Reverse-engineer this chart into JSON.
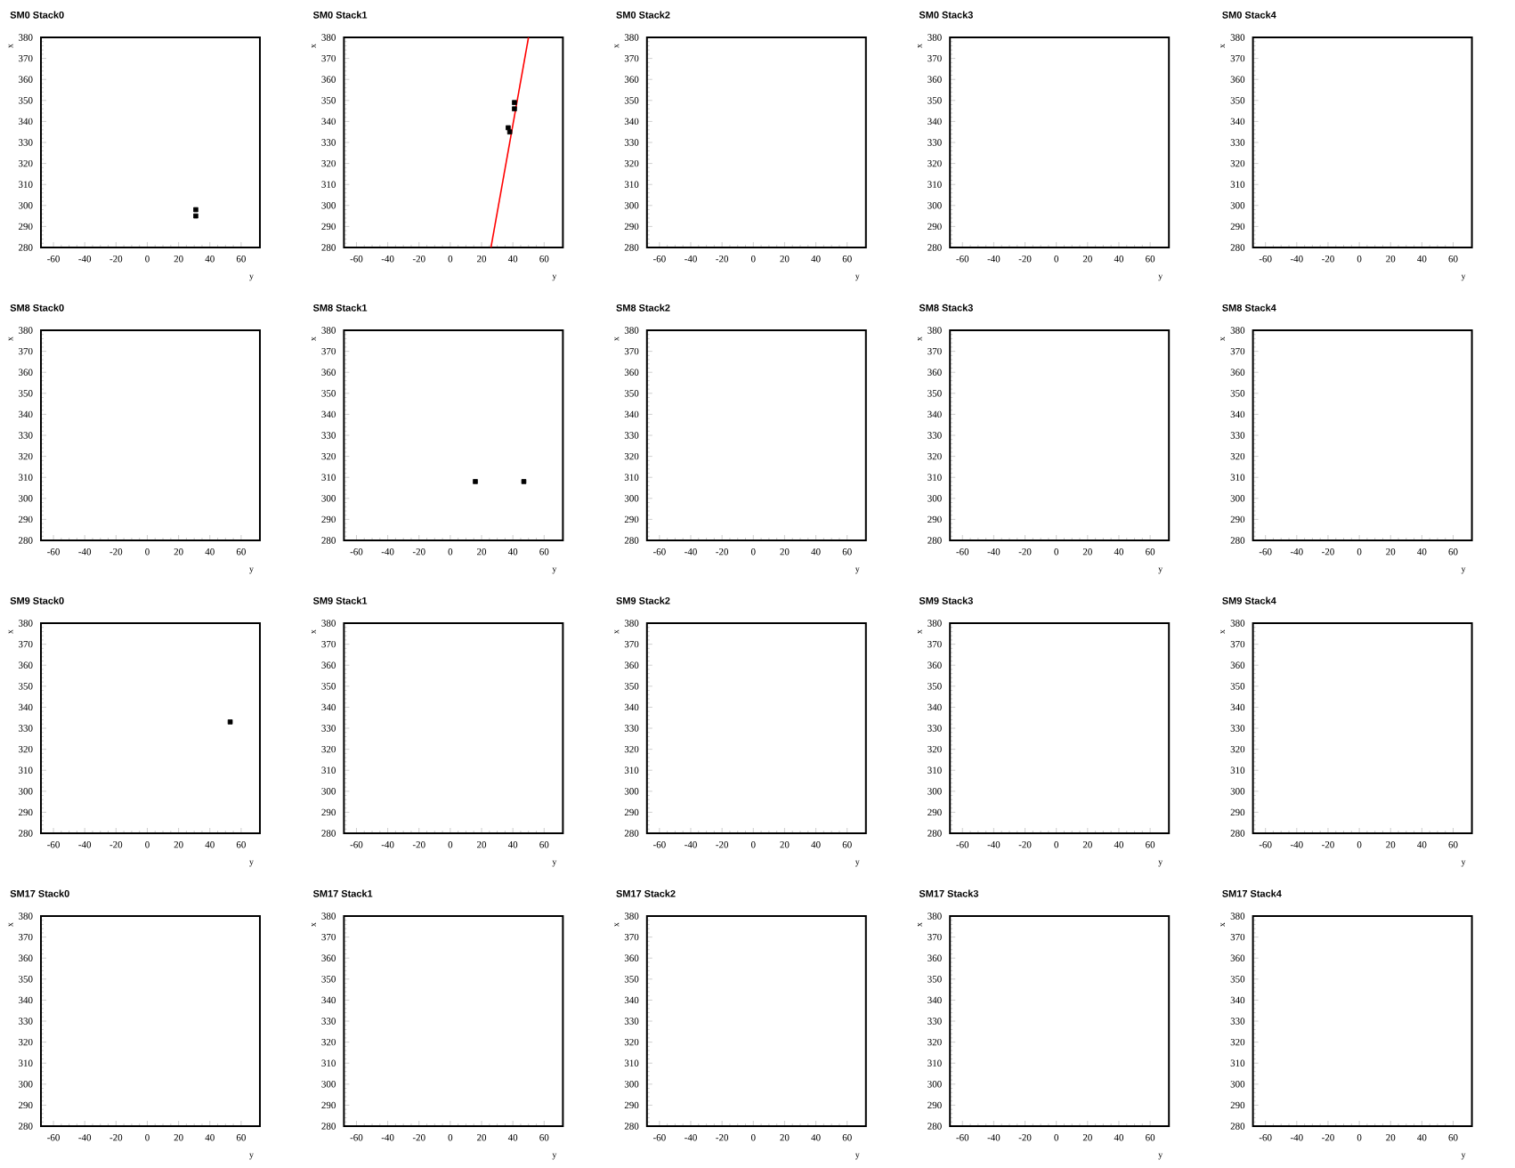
{
  "chart_data": [
    {
      "type": "scatter",
      "title": "SM0 Stack0",
      "xlabel": "y",
      "ylabel": "x",
      "xlim": [
        -68,
        72
      ],
      "ylim": [
        280,
        380
      ],
      "xticks": [
        -60,
        -40,
        -20,
        0,
        20,
        40,
        60
      ],
      "yticks": [
        280,
        290,
        300,
        310,
        320,
        330,
        340,
        350,
        360,
        370,
        380
      ],
      "series": [
        {
          "color": "#000000",
          "marker": "square",
          "x": [
            31,
            31
          ],
          "values": [
            298,
            295
          ]
        }
      ]
    },
    {
      "type": "scatter",
      "title": "SM0 Stack1",
      "xlabel": "y",
      "ylabel": "x",
      "xlim": [
        -68,
        72
      ],
      "ylim": [
        280,
        380
      ],
      "xticks": [
        -60,
        -40,
        -20,
        0,
        20,
        40,
        60
      ],
      "yticks": [
        280,
        290,
        300,
        310,
        320,
        330,
        340,
        350,
        360,
        370,
        380
      ],
      "series": [
        {
          "color": "#000000",
          "marker": "square",
          "x": [
            37,
            38,
            41,
            41
          ],
          "values": [
            337,
            335,
            349,
            346
          ]
        },
        {
          "type": "line",
          "color": "#ff0000",
          "x": [
            26,
            50
          ],
          "values": [
            280,
            380
          ]
        }
      ]
    },
    {
      "type": "scatter",
      "title": "SM0 Stack2",
      "xlabel": "y",
      "ylabel": "x",
      "xlim": [
        -68,
        72
      ],
      "ylim": [
        280,
        380
      ],
      "xticks": [
        -60,
        -40,
        -20,
        0,
        20,
        40,
        60
      ],
      "yticks": [
        280,
        290,
        300,
        310,
        320,
        330,
        340,
        350,
        360,
        370,
        380
      ]
    },
    {
      "type": "scatter",
      "title": "SM0 Stack3",
      "xlabel": "y",
      "ylabel": "x",
      "xlim": [
        -68,
        72
      ],
      "ylim": [
        280,
        380
      ],
      "xticks": [
        -60,
        -40,
        -20,
        0,
        20,
        40,
        60
      ],
      "yticks": [
        280,
        290,
        300,
        310,
        320,
        330,
        340,
        350,
        360,
        370,
        380
      ]
    },
    {
      "type": "scatter",
      "title": "SM0 Stack4",
      "xlabel": "y",
      "ylabel": "x",
      "xlim": [
        -68,
        72
      ],
      "ylim": [
        280,
        380
      ],
      "xticks": [
        -60,
        -40,
        -20,
        0,
        20,
        40,
        60
      ],
      "yticks": [
        280,
        290,
        300,
        310,
        320,
        330,
        340,
        350,
        360,
        370,
        380
      ]
    },
    {
      "type": "scatter",
      "title": "SM8 Stack0",
      "xlabel": "y",
      "ylabel": "x",
      "xlim": [
        -68,
        72
      ],
      "ylim": [
        280,
        380
      ],
      "xticks": [
        -60,
        -40,
        -20,
        0,
        20,
        40,
        60
      ],
      "yticks": [
        280,
        290,
        300,
        310,
        320,
        330,
        340,
        350,
        360,
        370,
        380
      ]
    },
    {
      "type": "scatter",
      "title": "SM8 Stack1",
      "xlabel": "y",
      "ylabel": "x",
      "xlim": [
        -68,
        72
      ],
      "ylim": [
        280,
        380
      ],
      "xticks": [
        -60,
        -40,
        -20,
        0,
        20,
        40,
        60
      ],
      "yticks": [
        280,
        290,
        300,
        310,
        320,
        330,
        340,
        350,
        360,
        370,
        380
      ],
      "series": [
        {
          "color": "#000000",
          "marker": "square",
          "x": [
            16,
            47
          ],
          "values": [
            308,
            308
          ]
        }
      ]
    },
    {
      "type": "scatter",
      "title": "SM8 Stack2",
      "xlabel": "y",
      "ylabel": "x",
      "xlim": [
        -68,
        72
      ],
      "ylim": [
        280,
        380
      ],
      "xticks": [
        -60,
        -40,
        -20,
        0,
        20,
        40,
        60
      ],
      "yticks": [
        280,
        290,
        300,
        310,
        320,
        330,
        340,
        350,
        360,
        370,
        380
      ]
    },
    {
      "type": "scatter",
      "title": "SM8 Stack3",
      "xlabel": "y",
      "ylabel": "x",
      "xlim": [
        -68,
        72
      ],
      "ylim": [
        280,
        380
      ],
      "xticks": [
        -60,
        -40,
        -20,
        0,
        20,
        40,
        60
      ],
      "yticks": [
        280,
        290,
        300,
        310,
        320,
        330,
        340,
        350,
        360,
        370,
        380
      ]
    },
    {
      "type": "scatter",
      "title": "SM8 Stack4",
      "xlabel": "y",
      "ylabel": "x",
      "xlim": [
        -68,
        72
      ],
      "ylim": [
        280,
        380
      ],
      "xticks": [
        -60,
        -40,
        -20,
        0,
        20,
        40,
        60
      ],
      "yticks": [
        280,
        290,
        300,
        310,
        320,
        330,
        340,
        350,
        360,
        370,
        380
      ]
    },
    {
      "type": "scatter",
      "title": "SM9 Stack0",
      "xlabel": "y",
      "ylabel": "x",
      "xlim": [
        -68,
        72
      ],
      "ylim": [
        280,
        380
      ],
      "xticks": [
        -60,
        -40,
        -20,
        0,
        20,
        40,
        60
      ],
      "yticks": [
        280,
        290,
        300,
        310,
        320,
        330,
        340,
        350,
        360,
        370,
        380
      ],
      "series": [
        {
          "color": "#000000",
          "marker": "square",
          "x": [
            53
          ],
          "values": [
            333
          ]
        }
      ]
    },
    {
      "type": "scatter",
      "title": "SM9 Stack1",
      "xlabel": "y",
      "ylabel": "x",
      "xlim": [
        -68,
        72
      ],
      "ylim": [
        280,
        380
      ],
      "xticks": [
        -60,
        -40,
        -20,
        0,
        20,
        40,
        60
      ],
      "yticks": [
        280,
        290,
        300,
        310,
        320,
        330,
        340,
        350,
        360,
        370,
        380
      ]
    },
    {
      "type": "scatter",
      "title": "SM9 Stack2",
      "xlabel": "y",
      "ylabel": "x",
      "xlim": [
        -68,
        72
      ],
      "ylim": [
        280,
        380
      ],
      "xticks": [
        -60,
        -40,
        -20,
        0,
        20,
        40,
        60
      ],
      "yticks": [
        280,
        290,
        300,
        310,
        320,
        330,
        340,
        350,
        360,
        370,
        380
      ]
    },
    {
      "type": "scatter",
      "title": "SM9 Stack3",
      "xlabel": "y",
      "ylabel": "x",
      "xlim": [
        -68,
        72
      ],
      "ylim": [
        280,
        380
      ],
      "xticks": [
        -60,
        -40,
        -20,
        0,
        20,
        40,
        60
      ],
      "yticks": [
        280,
        290,
        300,
        310,
        320,
        330,
        340,
        350,
        360,
        370,
        380
      ]
    },
    {
      "type": "scatter",
      "title": "SM9 Stack4",
      "xlabel": "y",
      "ylabel": "x",
      "xlim": [
        -68,
        72
      ],
      "ylim": [
        280,
        380
      ],
      "xticks": [
        -60,
        -40,
        -20,
        0,
        20,
        40,
        60
      ],
      "yticks": [
        280,
        290,
        300,
        310,
        320,
        330,
        340,
        350,
        360,
        370,
        380
      ]
    },
    {
      "type": "scatter",
      "title": "SM17 Stack0",
      "xlabel": "y",
      "ylabel": "x",
      "xlim": [
        -68,
        72
      ],
      "ylim": [
        280,
        380
      ],
      "xticks": [
        -60,
        -40,
        -20,
        0,
        20,
        40,
        60
      ],
      "yticks": [
        280,
        290,
        300,
        310,
        320,
        330,
        340,
        350,
        360,
        370,
        380
      ]
    },
    {
      "type": "scatter",
      "title": "SM17 Stack1",
      "xlabel": "y",
      "ylabel": "x",
      "xlim": [
        -68,
        72
      ],
      "ylim": [
        280,
        380
      ],
      "xticks": [
        -60,
        -40,
        -20,
        0,
        20,
        40,
        60
      ],
      "yticks": [
        280,
        290,
        300,
        310,
        320,
        330,
        340,
        350,
        360,
        370,
        380
      ]
    },
    {
      "type": "scatter",
      "title": "SM17 Stack2",
      "xlabel": "y",
      "ylabel": "x",
      "xlim": [
        -68,
        72
      ],
      "ylim": [
        280,
        380
      ],
      "xticks": [
        -60,
        -40,
        -20,
        0,
        20,
        40,
        60
      ],
      "yticks": [
        280,
        290,
        300,
        310,
        320,
        330,
        340,
        350,
        360,
        370,
        380
      ]
    },
    {
      "type": "scatter",
      "title": "SM17 Stack3",
      "xlabel": "y",
      "ylabel": "x",
      "xlim": [
        -68,
        72
      ],
      "ylim": [
        280,
        380
      ],
      "xticks": [
        -60,
        -40,
        -20,
        0,
        20,
        40,
        60
      ],
      "yticks": [
        280,
        290,
        300,
        310,
        320,
        330,
        340,
        350,
        360,
        370,
        380
      ]
    },
    {
      "type": "scatter",
      "title": "SM17 Stack4",
      "xlabel": "y",
      "ylabel": "x",
      "xlim": [
        -68,
        72
      ],
      "ylim": [
        280,
        380
      ],
      "xticks": [
        -60,
        -40,
        -20,
        0,
        20,
        40,
        60
      ],
      "yticks": [
        280,
        290,
        300,
        310,
        320,
        330,
        340,
        350,
        360,
        370,
        380
      ]
    }
  ]
}
